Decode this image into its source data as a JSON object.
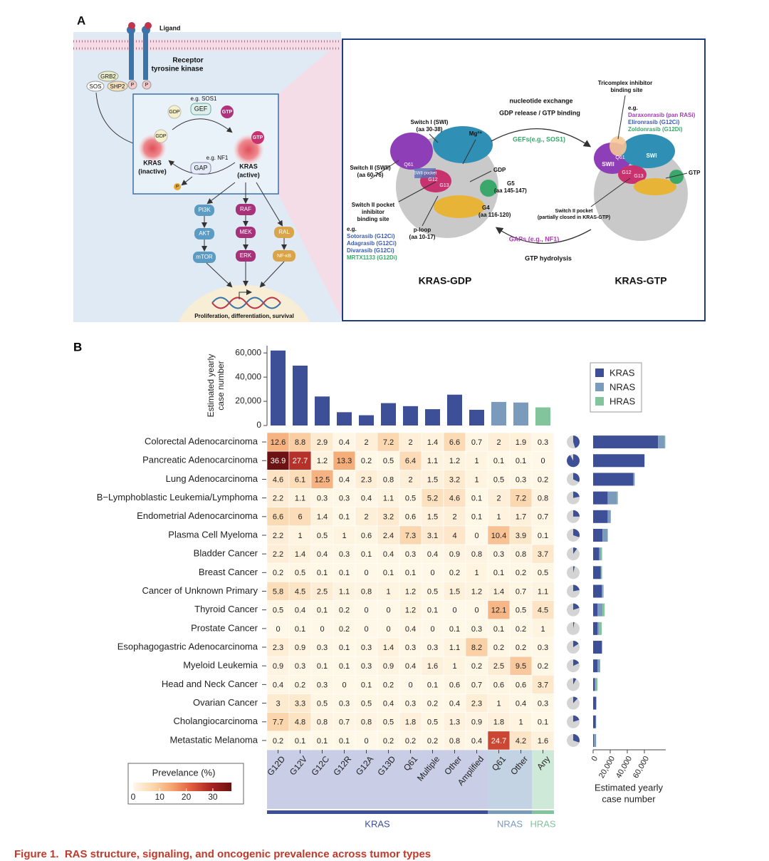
{
  "panel_a": {
    "labels": [
      "A",
      "Ligand",
      "Receptor",
      "tyrosine kinase",
      "GRB2",
      "SOS",
      "SHP2",
      "P",
      "P",
      "e.g. SOS1",
      "GEF",
      "GDP",
      "GTP",
      "GDP",
      "KRAS",
      "(inactive)",
      "GTP",
      "KRAS",
      "(active)",
      "e.g. NF1",
      "GAP",
      "P",
      "PI3K",
      "AKT",
      "mTOR",
      "RAF",
      "MEK",
      "ERK",
      "RAL",
      "NF-κB",
      "Proliferation, differentiation, survival",
      "nucleotide exchange",
      "GDP release / GTP binding",
      "GEFs(e.g., SOS1)",
      "GAPs (e.g., NF1)",
      "GTP hydrolysis",
      "KRAS-GDP",
      "KRAS-GTP",
      "Switch I (SWI)",
      "(aa 30-38)",
      "Mg²⁺",
      "Switch II (SWII)",
      "(aa 60-76)",
      "GDP",
      "G5",
      "(aa 145-147)",
      "G4",
      "(aa 116-120)",
      "p-loop",
      "(aa 10-17)",
      "Switch II pocket",
      "inhibitor",
      "binding site",
      "e.g.",
      "Sotorasib (G12Ci)",
      "Adagrasib (G12Ci)",
      "Divarasib (G12Ci)",
      "MRTX1133 (G12Di)",
      "Q61",
      "SWII pocket",
      "G12",
      "G13",
      "Tricomplex inhibitor",
      "binding site",
      "e.g.",
      "Daraxonrasib (pan RASi)",
      "Elironrasib (G12Ci)",
      "Zoldonrasib (G12Di)",
      "SWI",
      "SWII",
      "Q61",
      "G12",
      "G13",
      "GTP",
      "Switch II pocket",
      "(partially closed in KRAS-GTP)"
    ]
  },
  "chart_data": {
    "type": "heatmap",
    "panel_label": "B",
    "groups": [
      {
        "name": "KRAS",
        "color": "#3d4f96",
        "shade": "#c9cde6",
        "columns": [
          "G12D",
          "G12V",
          "G12C",
          "G12R",
          "G12A",
          "G13D",
          "Q61",
          "Multiple",
          "Other",
          "Amplified"
        ]
      },
      {
        "name": "NRAS",
        "color": "#7b9bbd",
        "shade": "#c3d3e3",
        "columns": [
          "Q61",
          "Other"
        ]
      },
      {
        "name": "HRAS",
        "color": "#82c49c",
        "shade": "#cfe9d8",
        "columns": [
          "Any"
        ]
      }
    ],
    "rows": [
      "Colorectal Adenocarcinoma",
      "Pancreatic Adenocarcinoma",
      "Lung Adenocarcinoma",
      "B−Lymphoblastic Leukemia/Lymphoma",
      "Endometrial Adenocarcinoma",
      "Plasma Cell Myeloma",
      "Bladder Cancer",
      "Breast Cancer",
      "Cancer of Unknown Primary",
      "Thyroid Cancer",
      "Prostate Cancer",
      "Esophagogastric Adenocarcinoma",
      "Myeloid Leukemia",
      "Head and Neck Cancer",
      "Ovarian Cancer",
      "Cholangiocarcinoma",
      "Metastatic Melanoma"
    ],
    "values": [
      [
        12.6,
        8.8,
        2.9,
        0.4,
        2,
        7.2,
        2,
        1.4,
        6.6,
        0.7,
        2,
        1.9,
        0.3
      ],
      [
        36.9,
        27.7,
        1.2,
        13.3,
        0.2,
        0.5,
        6.4,
        1.1,
        1.2,
        1,
        0.1,
        0.1,
        0
      ],
      [
        4.6,
        6.1,
        12.5,
        0.4,
        2.3,
        0.8,
        2,
        1.5,
        3.2,
        1,
        0.5,
        0.3,
        0.2
      ],
      [
        2.2,
        1.1,
        0.3,
        0.3,
        0.4,
        1.1,
        0.5,
        5.2,
        4.6,
        0.1,
        2,
        7.2,
        0.8
      ],
      [
        6.6,
        6,
        1.4,
        0.1,
        2,
        3.2,
        0.6,
        1.5,
        2,
        0.1,
        1,
        1.7,
        0.7
      ],
      [
        2.2,
        1,
        0.5,
        1,
        0.6,
        2.4,
        7.3,
        3.1,
        4,
        0,
        10.4,
        3.9,
        0.1
      ],
      [
        2.2,
        1.4,
        0.4,
        0.3,
        0.1,
        0.4,
        0.3,
        0.4,
        0.9,
        0.8,
        0.3,
        0.8,
        3.7
      ],
      [
        0.2,
        0.5,
        0.1,
        0.1,
        0,
        0.1,
        0.1,
        0,
        0.2,
        1,
        0.1,
        0.2,
        0.5
      ],
      [
        5.8,
        4.5,
        2.5,
        1.1,
        0.8,
        1,
        1.2,
        0.5,
        1.5,
        1.2,
        1.4,
        0.7,
        1.1
      ],
      [
        0.5,
        0.4,
        0.1,
        0.2,
        0,
        0,
        1.2,
        0.1,
        0,
        0,
        12.1,
        0.5,
        4.5
      ],
      [
        0,
        0.1,
        0,
        0.2,
        0,
        0,
        0.4,
        0,
        0.1,
        0.3,
        0.1,
        0.2,
        1
      ],
      [
        2.3,
        0.9,
        0.3,
        0.1,
        0.3,
        1.4,
        0.3,
        0.3,
        1.1,
        8.2,
        0.2,
        0.2,
        0.3
      ],
      [
        0.9,
        0.3,
        0.1,
        0.1,
        0.3,
        0.9,
        0.4,
        1.6,
        1,
        0.2,
        2.5,
        9.5,
        0.2
      ],
      [
        0.4,
        0.2,
        0.3,
        0,
        0.1,
        0.2,
        0,
        0.1,
        0.6,
        0.7,
        0.6,
        0.6,
        3.7
      ],
      [
        3,
        3.3,
        0.5,
        0.3,
        0.5,
        0.4,
        0.3,
        0.2,
        0.4,
        2.3,
        1,
        0.4,
        0.3
      ],
      [
        7.7,
        4.8,
        0.8,
        0.7,
        0.8,
        0.5,
        1.8,
        0.5,
        1.3,
        0.9,
        1.8,
        1,
        0.1
      ],
      [
        0.2,
        0.1,
        0.1,
        0.1,
        0,
        0.2,
        0.2,
        0.2,
        0.8,
        0.4,
        24.7,
        4.2,
        1.6
      ]
    ],
    "colorbar": {
      "title": "Prevelance (%)",
      "lim": [
        0,
        37
      ],
      "ticks": [
        0,
        10,
        20,
        30
      ],
      "colormap": [
        "#fff8e8",
        "#fbd7ae",
        "#f4a36d",
        "#e05a3c",
        "#a62322",
        "#6b1212"
      ]
    },
    "top_bars": {
      "ylabel": [
        "Estimated yearly",
        "case number"
      ],
      "ylim": [
        0,
        66000
      ],
      "yticks": [
        0,
        {
          "value": 20000,
          "label": "20,000"
        },
        {
          "value": 40000,
          "label": "40,000"
        },
        {
          "value": 60000,
          "label": "60,000"
        }
      ],
      "values": [
        62000,
        49500,
        24000,
        11000,
        8500,
        18500,
        16000,
        13500,
        25500,
        13000,
        19500,
        19000,
        15000
      ]
    },
    "pies": {
      "values": [
        45,
        92,
        32,
        22,
        25,
        30,
        10,
        4,
        22,
        20,
        3,
        16,
        18,
        8,
        12,
        20,
        30
      ],
      "color": "#3d4f96",
      "background": "#d4d4d4"
    },
    "side_bars": {
      "xlabel": [
        "Estimated yearly",
        "case number"
      ],
      "xlim": [
        0,
        85000
      ],
      "xticks": [
        0,
        {
          "value": 20000,
          "label": "20,000"
        },
        {
          "value": 40000,
          "label": "40,000"
        },
        {
          "value": 60000,
          "label": "60,000"
        }
      ],
      "series": [
        {
          "name": "KRAS",
          "color": "#3d4f96",
          "values": [
            76000,
            60000,
            47000,
            17000,
            17000,
            11000,
            7000,
            9000,
            10000,
            5000,
            5000,
            10000,
            5000,
            2000,
            3500,
            3000,
            900
          ]
        },
        {
          "name": "NRAS",
          "color": "#7b9bbd",
          "values": [
            8000,
            200,
            1500,
            11000,
            3000,
            6000,
            2000,
            500,
            1500,
            6000,
            2000,
            400,
            3000,
            1000,
            300,
            500,
            2500
          ]
        },
        {
          "name": "HRAS",
          "color": "#82c49c",
          "values": [
            500,
            0,
            300,
            1000,
            800,
            200,
            1500,
            1000,
            800,
            2500,
            3000,
            300,
            300,
            2000,
            200,
            100,
            200
          ]
        }
      ]
    }
  },
  "caption": "Figure 1.  RAS structure, signaling, and oncogenic prevalence across tumor types"
}
